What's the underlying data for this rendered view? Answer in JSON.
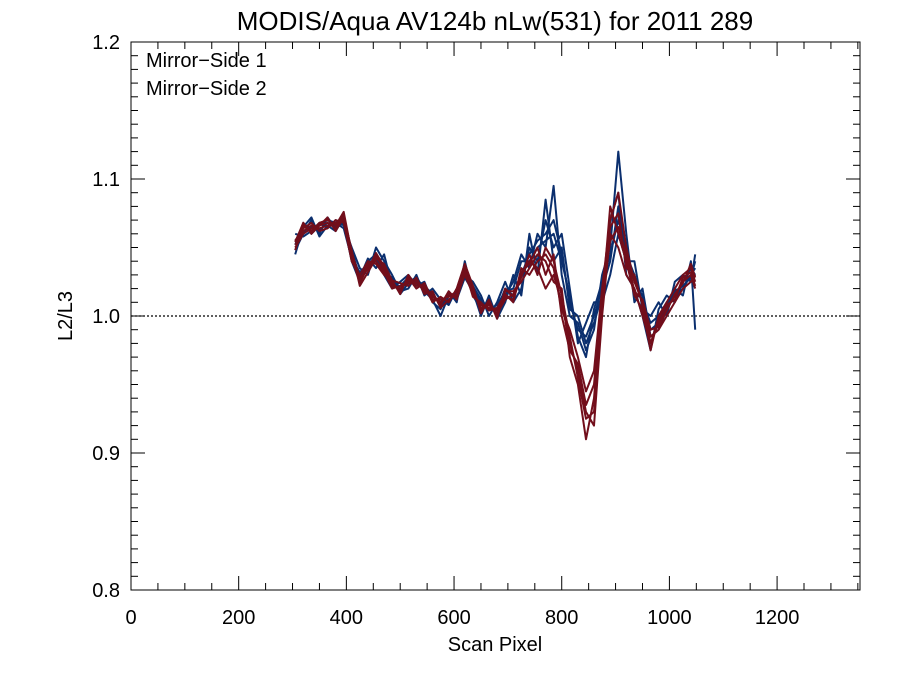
{
  "chart_data": {
    "type": "line",
    "title": "MODIS/Aqua AV124b nLw(531) for 2011 289",
    "xlabel": "Scan Pixel",
    "ylabel": "L2/L3",
    "xlim": [
      0,
      1354
    ],
    "ylim": [
      0.8,
      1.2
    ],
    "x_ticks": [
      0,
      200,
      400,
      600,
      800,
      1000,
      1200
    ],
    "x_tick_labels": [
      "0",
      "200",
      "400",
      "600",
      "800",
      "1000",
      "1200"
    ],
    "y_ticks": [
      0.8,
      0.9,
      1.0,
      1.1,
      1.2
    ],
    "y_tick_labels": [
      "0.8",
      "0.9",
      "1.0",
      "1.1",
      "1.2"
    ],
    "reference_line": 1.0,
    "legend_position": "top-left",
    "legend": [
      {
        "name": "Mirror−Side 1",
        "color": "#0b2f6e"
      },
      {
        "name": "Mirror−Side 2",
        "color": "#720e1b"
      }
    ],
    "x": [
      305,
      320,
      335,
      350,
      365,
      380,
      395,
      410,
      425,
      440,
      455,
      470,
      485,
      500,
      515,
      530,
      545,
      560,
      575,
      590,
      605,
      620,
      635,
      650,
      665,
      680,
      695,
      710,
      725,
      740,
      755,
      770,
      785,
      800,
      815,
      830,
      845,
      860,
      875,
      890,
      905,
      920,
      935,
      950,
      965,
      980,
      995,
      1010,
      1025,
      1040,
      1048
    ],
    "series": [
      {
        "group": 1,
        "color": "#0b2f6e",
        "values": [
          1.055,
          1.062,
          1.065,
          1.063,
          1.068,
          1.066,
          1.07,
          1.045,
          1.03,
          1.035,
          1.04,
          1.035,
          1.025,
          1.02,
          1.025,
          1.028,
          1.02,
          1.015,
          1.01,
          1.012,
          1.015,
          1.035,
          1.02,
          1.01,
          1.008,
          1.005,
          1.02,
          1.015,
          1.03,
          1.045,
          1.055,
          1.06,
          1.07,
          1.045,
          1.01,
          0.99,
          0.985,
          1.0,
          1.02,
          1.04,
          1.08,
          1.045,
          1.03,
          1.01,
          0.995,
          1.0,
          1.01,
          1.015,
          1.02,
          1.03,
          1.035
        ]
      },
      {
        "group": 1,
        "color": "#0b2f6e",
        "values": [
          1.048,
          1.06,
          1.07,
          1.06,
          1.072,
          1.064,
          1.068,
          1.04,
          1.025,
          1.04,
          1.045,
          1.03,
          1.02,
          1.025,
          1.03,
          1.022,
          1.025,
          1.01,
          1.005,
          1.018,
          1.01,
          1.04,
          1.015,
          1.005,
          1.012,
          1.0,
          1.015,
          1.025,
          1.045,
          1.035,
          1.06,
          1.05,
          1.095,
          1.03,
          1.0,
          0.995,
          0.975,
          0.99,
          1.03,
          1.05,
          1.12,
          1.06,
          1.01,
          1.02,
          0.985,
          0.99,
          1.005,
          1.02,
          1.015,
          1.04,
          0.99
        ]
      },
      {
        "group": 1,
        "color": "#0b2f6e",
        "values": [
          1.06,
          1.058,
          1.062,
          1.068,
          1.064,
          1.07,
          1.066,
          1.05,
          1.035,
          1.03,
          1.05,
          1.04,
          1.03,
          1.018,
          1.02,
          1.03,
          1.015,
          1.02,
          1.012,
          1.008,
          1.02,
          1.03,
          1.025,
          1.015,
          1.0,
          1.01,
          1.025,
          1.01,
          1.02,
          1.05,
          1.04,
          1.07,
          1.05,
          1.06,
          1.02,
          0.98,
          0.995,
          1.01,
          1.01,
          1.03,
          1.06,
          1.04,
          1.04,
          1.005,
          1.0,
          1.01,
          1.0,
          1.025,
          1.03,
          1.025,
          1.045
        ]
      },
      {
        "group": 1,
        "color": "#0b2f6e",
        "values": [
          1.045,
          1.065,
          1.072,
          1.058,
          1.066,
          1.062,
          1.072,
          1.048,
          1.028,
          1.042,
          1.035,
          1.045,
          1.022,
          1.022,
          1.028,
          1.025,
          1.018,
          1.012,
          1.0,
          1.015,
          1.012,
          1.028,
          1.018,
          1.0,
          1.015,
          0.998,
          1.01,
          1.03,
          1.015,
          1.06,
          1.03,
          1.085,
          1.04,
          1.05,
          1.005,
          1.0,
          0.98,
          0.995,
          1.015,
          1.07,
          1.09,
          1.03,
          1.02,
          1.0,
          0.975,
          1.005,
          1.015,
          1.01,
          1.025,
          1.035,
          1.03
        ]
      },
      {
        "group": 1,
        "color": "#0b2f6e",
        "values": [
          1.052,
          1.068,
          1.06,
          1.066,
          1.07,
          1.068,
          1.064,
          1.042,
          1.032,
          1.038,
          1.042,
          1.032,
          1.028,
          1.016,
          1.024,
          1.026,
          1.022,
          1.016,
          1.008,
          1.01,
          1.018,
          1.032,
          1.022,
          1.012,
          1.005,
          1.008,
          1.018,
          1.02,
          1.04,
          1.04,
          1.05,
          1.055,
          1.06,
          1.04,
          1.015,
          0.985,
          0.97,
          1.005,
          1.025,
          1.045,
          1.07,
          1.05,
          1.025,
          1.015,
          0.99,
          0.995,
          1.008,
          1.018,
          1.022,
          1.028,
          1.04
        ]
      },
      {
        "group": 2,
        "color": "#720e1b",
        "values": [
          1.05,
          1.06,
          1.064,
          1.066,
          1.068,
          1.064,
          1.074,
          1.044,
          1.024,
          1.036,
          1.044,
          1.034,
          1.022,
          1.02,
          1.026,
          1.024,
          1.02,
          1.014,
          1.01,
          1.016,
          1.014,
          1.03,
          1.016,
          1.008,
          1.006,
          1.004,
          1.014,
          1.012,
          1.03,
          1.04,
          1.035,
          1.02,
          1.03,
          1.01,
          0.98,
          0.96,
          0.93,
          0.92,
          1.0,
          1.06,
          1.05,
          1.03,
          1.02,
          1.0,
          0.98,
          0.995,
          1.005,
          1.015,
          1.025,
          1.03,
          1.02
        ]
      },
      {
        "group": 2,
        "color": "#720e1b",
        "values": [
          1.055,
          1.064,
          1.068,
          1.062,
          1.064,
          1.07,
          1.068,
          1.04,
          1.03,
          1.04,
          1.038,
          1.03,
          1.026,
          1.024,
          1.022,
          1.028,
          1.016,
          1.018,
          1.006,
          1.012,
          1.016,
          1.036,
          1.02,
          1.004,
          1.01,
          1.0,
          1.018,
          1.018,
          1.025,
          1.035,
          1.045,
          1.04,
          1.025,
          1.02,
          0.97,
          0.95,
          0.91,
          0.94,
          1.01,
          1.08,
          1.06,
          1.04,
          1.015,
          1.005,
          0.975,
          1.0,
          1.01,
          1.02,
          1.03,
          1.035,
          1.025
        ]
      },
      {
        "group": 2,
        "color": "#720e1b",
        "values": [
          1.048,
          1.066,
          1.062,
          1.068,
          1.07,
          1.066,
          1.076,
          1.046,
          1.028,
          1.034,
          1.046,
          1.036,
          1.024,
          1.018,
          1.028,
          1.02,
          1.024,
          1.012,
          1.012,
          1.014,
          1.018,
          1.034,
          1.014,
          1.01,
          1.004,
          1.006,
          1.016,
          1.01,
          1.035,
          1.03,
          1.04,
          1.045,
          1.035,
          1.005,
          0.99,
          0.97,
          0.945,
          0.96,
          1.02,
          1.07,
          1.09,
          1.05,
          1.025,
          1.01,
          0.985,
          0.99,
          1.0,
          1.01,
          1.02,
          1.025,
          1.03
        ]
      },
      {
        "group": 2,
        "color": "#720e1b",
        "values": [
          1.052,
          1.062,
          1.066,
          1.064,
          1.066,
          1.068,
          1.07,
          1.042,
          1.026,
          1.038,
          1.04,
          1.032,
          1.02,
          1.022,
          1.024,
          1.026,
          1.018,
          1.016,
          1.008,
          1.018,
          1.012,
          1.032,
          1.018,
          1.006,
          1.008,
          1.002,
          1.012,
          1.016,
          1.028,
          1.045,
          1.03,
          1.05,
          1.04,
          1.015,
          0.985,
          0.955,
          0.925,
          0.93,
          1.005,
          1.065,
          1.075,
          1.035,
          1.03,
          1.008,
          0.98,
          0.998,
          1.008,
          1.012,
          1.028,
          1.032,
          1.022
        ]
      },
      {
        "group": 2,
        "color": "#720e1b",
        "values": [
          1.054,
          1.068,
          1.06,
          1.066,
          1.072,
          1.062,
          1.072,
          1.048,
          1.022,
          1.032,
          1.042,
          1.038,
          1.026,
          1.016,
          1.03,
          1.022,
          1.022,
          1.01,
          1.014,
          1.01,
          1.02,
          1.038,
          1.022,
          1.002,
          1.012,
          0.998,
          1.02,
          1.014,
          1.032,
          1.038,
          1.05,
          1.03,
          1.045,
          1.0,
          0.975,
          0.965,
          0.935,
          0.95,
          1.015,
          1.055,
          1.065,
          1.045,
          1.018,
          1.012,
          0.99,
          0.992,
          1.004,
          1.016,
          1.024,
          1.038,
          1.028
        ]
      }
    ]
  }
}
